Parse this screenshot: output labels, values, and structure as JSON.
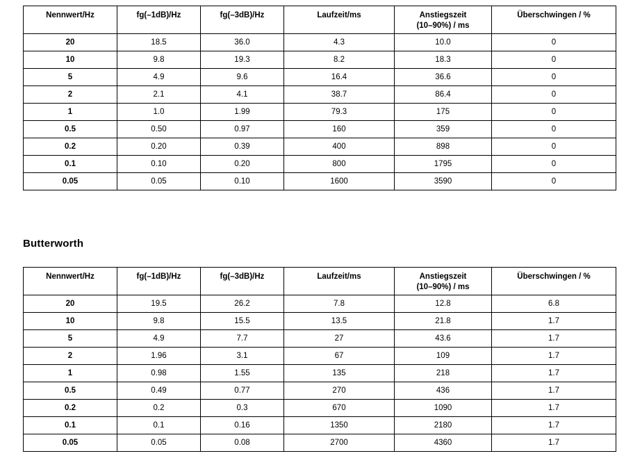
{
  "page": {
    "background": "#ffffff",
    "text_color": "#000000",
    "border_color": "#000000"
  },
  "columns": [
    "Nennwert/Hz",
    "fg(–1dB)/Hz",
    "fg(–3dB)/Hz",
    "Laufzeit/ms",
    "Anstiegszeit\n(10–90%) / ms",
    "Überschwingen / %"
  ],
  "table_1": {
    "rows": [
      [
        "20",
        "18.5",
        "36.0",
        "4.3",
        "10.0",
        "0"
      ],
      [
        "10",
        "9.8",
        "19.3",
        "8.2",
        "18.3",
        "0"
      ],
      [
        "5",
        "4.9",
        "9.6",
        "16.4",
        "36.6",
        "0"
      ],
      [
        "2",
        "2.1",
        "4.1",
        "38.7",
        "86.4",
        "0"
      ],
      [
        "1",
        "1.0",
        "1.99",
        "79.3",
        "175",
        "0"
      ],
      [
        "0.5",
        "0.50",
        "0.97",
        "160",
        "359",
        "0"
      ],
      [
        "0.2",
        "0.20",
        "0.39",
        "400",
        "898",
        "0"
      ],
      [
        "0.1",
        "0.10",
        "0.20",
        "800",
        "1795",
        "0"
      ],
      [
        "0.05",
        "0.05",
        "0.10",
        "1600",
        "3590",
        "0"
      ]
    ]
  },
  "butterworth": {
    "heading": "Butterworth",
    "rows": [
      [
        "20",
        "19.5",
        "26.2",
        "7.8",
        "12.8",
        "6.8"
      ],
      [
        "10",
        "9.8",
        "15.5",
        "13.5",
        "21.8",
        "1.7"
      ],
      [
        "5",
        "4.9",
        "7.7",
        "27",
        "43.6",
        "1.7"
      ],
      [
        "2",
        "1.96",
        "3.1",
        "67",
        "109",
        "1.7"
      ],
      [
        "1",
        "0.98",
        "1.55",
        "135",
        "218",
        "1.7"
      ],
      [
        "0.5",
        "0.49",
        "0.77",
        "270",
        "436",
        "1.7"
      ],
      [
        "0.2",
        "0.2",
        "0.3",
        "670",
        "1090",
        "1.7"
      ],
      [
        "0.1",
        "0.1",
        "0.16",
        "1350",
        "2180",
        "1.7"
      ],
      [
        "0.05",
        "0.05",
        "0.08",
        "2700",
        "4360",
        "1.7"
      ]
    ]
  }
}
